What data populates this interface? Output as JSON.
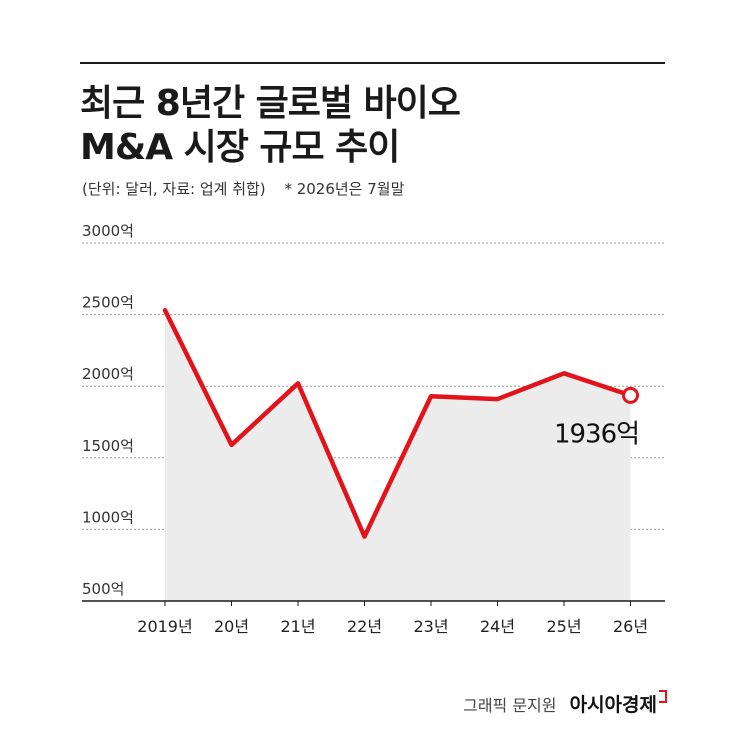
{
  "header": {
    "title_line1": "최근 8년간 글로벌 바이오",
    "title_line2": "M&A 시장 규모 추이",
    "note_unit": "(단위: 달러, 자료: 업계 취합)",
    "note_period": "* 2026년은 7월말"
  },
  "footer": {
    "credit": "그래픽 문지원",
    "brand": "아시아경제"
  },
  "colors": {
    "line": "#e3131b",
    "area": "#ececec",
    "grid": "#9a9a9a",
    "axis": "#1a1a1a"
  },
  "chart_data": {
    "type": "area",
    "categories": [
      "2019년",
      "20년",
      "21년",
      "22년",
      "23년",
      "24년",
      "25년",
      "26년"
    ],
    "values": [
      2530,
      1590,
      2020,
      950,
      1930,
      1910,
      2090,
      1936
    ],
    "y_ticks": [
      500,
      1000,
      1500,
      2000,
      2500,
      3000
    ],
    "y_tick_labels": [
      "500억",
      "1000억",
      "1500억",
      "2000억",
      "2500억",
      "3000억"
    ],
    "ylim": [
      500,
      3000
    ],
    "grid": true,
    "annotations": [
      {
        "index": 7,
        "text": "1936억"
      }
    ]
  }
}
